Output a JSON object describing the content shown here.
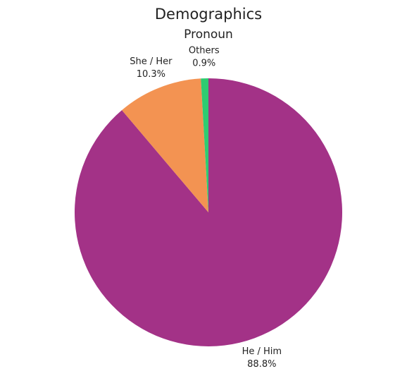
{
  "chart_data": {
    "type": "pie",
    "title": "Demographics",
    "subtitle": "Pronoun",
    "categories": [
      "He / Him",
      "She / Her",
      "Others"
    ],
    "values": [
      88.8,
      10.3,
      0.9
    ],
    "value_labels": [
      "88.8%",
      "10.3%",
      "0.9%"
    ],
    "colors": [
      "#a33287",
      "#f39352",
      "#2ecc71"
    ]
  }
}
